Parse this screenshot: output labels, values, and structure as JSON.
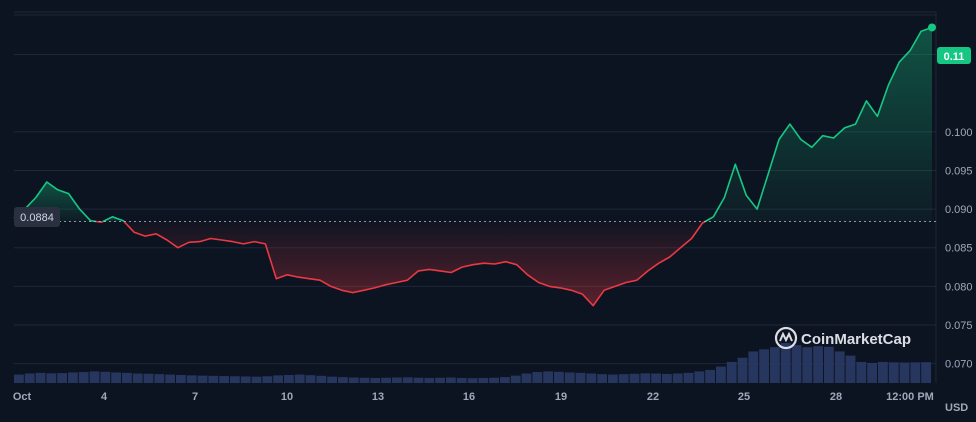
{
  "chart_data": {
    "type": "area",
    "ylim": [
      0.0675,
      0.1155
    ],
    "yticks": [
      "0.070",
      "0.075",
      "0.080",
      "0.085",
      "0.090",
      "0.095",
      "0.100",
      "0.11"
    ],
    "xticks": [
      "Oct",
      "4",
      "7",
      "10",
      "13",
      "16",
      "19",
      "22",
      "25",
      "28",
      "12:00 PM"
    ],
    "unit_label": "USD",
    "baseline": {
      "value": 0.0884,
      "label": "0.0884"
    },
    "current": {
      "value": 0.1135,
      "label": "0.11"
    },
    "colors": {
      "up": "#16c784",
      "down": "#ea3943",
      "volume": "#2a3a66",
      "background": "#0d1421"
    },
    "watermark": "CoinMarketCap",
    "series": [
      {
        "values": [
          0.0888,
          0.09,
          0.0915,
          0.0935,
          0.0925,
          0.092,
          0.09,
          0.0885,
          0.0883,
          0.089,
          0.0885,
          0.087,
          0.0865,
          0.0868,
          0.086,
          0.085,
          0.0857,
          0.0858,
          0.0862,
          0.086,
          0.0858,
          0.0855,
          0.0858,
          0.0855,
          0.081,
          0.0815,
          0.0812,
          0.081,
          0.0808,
          0.08,
          0.0795,
          0.0792,
          0.0795,
          0.0798,
          0.0802,
          0.0805,
          0.0808,
          0.082,
          0.0822,
          0.082,
          0.0818,
          0.0825,
          0.0828,
          0.083,
          0.0829,
          0.0832,
          0.0828,
          0.0815,
          0.0805,
          0.08,
          0.0798,
          0.0795,
          0.079,
          0.0775,
          0.0795,
          0.08,
          0.0805,
          0.0808,
          0.082,
          0.083,
          0.0838,
          0.085,
          0.0862,
          0.0882,
          0.089,
          0.0915,
          0.0958,
          0.0918,
          0.09,
          0.0945,
          0.099,
          0.101,
          0.099,
          0.098,
          0.0995,
          0.0992,
          0.1005,
          0.101,
          0.104,
          0.102,
          0.106,
          0.109,
          0.1105,
          0.113,
          0.1135
        ]
      }
    ],
    "volume": [
      0.4,
      0.45,
      0.48,
      0.46,
      0.47,
      0.5,
      0.52,
      0.55,
      0.53,
      0.5,
      0.48,
      0.45,
      0.44,
      0.42,
      0.4,
      0.38,
      0.36,
      0.35,
      0.34,
      0.33,
      0.32,
      0.31,
      0.3,
      0.32,
      0.36,
      0.38,
      0.4,
      0.37,
      0.34,
      0.3,
      0.28,
      0.26,
      0.25,
      0.24,
      0.25,
      0.26,
      0.27,
      0.25,
      0.24,
      0.25,
      0.26,
      0.24,
      0.23,
      0.24,
      0.25,
      0.28,
      0.35,
      0.45,
      0.52,
      0.55,
      0.53,
      0.5,
      0.48,
      0.45,
      0.42,
      0.4,
      0.42,
      0.44,
      0.46,
      0.45,
      0.43,
      0.45,
      0.48,
      0.55,
      0.62,
      0.78,
      1.0,
      1.2,
      1.5,
      1.6,
      1.7,
      1.9,
      1.8,
      1.7,
      1.75,
      1.72,
      1.5,
      1.3,
      1.0,
      0.95,
      1.0,
      0.98,
      0.97,
      0.98,
      0.99
    ]
  }
}
